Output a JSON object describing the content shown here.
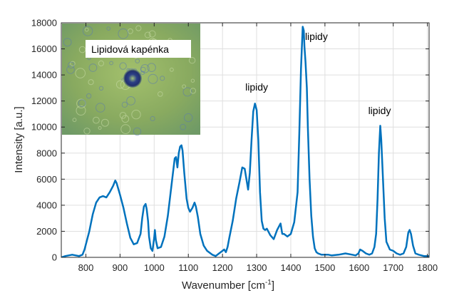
{
  "chart_data": {
    "type": "line",
    "xlabel": "Wavenumber [cm",
    "xlabel_sup": "-1",
    "xlabel_end": "]",
    "ylabel": "Intensity [a.u.]",
    "xlim": [
      728,
      1805
    ],
    "ylim": [
      0,
      18000
    ],
    "xticks": [
      800,
      900,
      1000,
      1100,
      1200,
      1300,
      1400,
      1500,
      1600,
      1700,
      1800
    ],
    "yticks": [
      0,
      2000,
      4000,
      6000,
      8000,
      10000,
      12000,
      14000,
      16000,
      18000
    ],
    "grid": true,
    "line_color": "#0072bd",
    "series": [
      {
        "x": [
          728,
          740,
          760,
          780,
          790,
          796,
          800,
          810,
          820,
          830,
          840,
          850,
          860,
          870,
          880,
          886,
          890,
          900,
          910,
          920,
          930,
          940,
          950,
          960,
          965,
          970,
          975,
          978,
          982,
          985,
          990,
          995,
          1000,
          1002,
          1005,
          1010,
          1020,
          1030,
          1040,
          1050,
          1060,
          1064,
          1068,
          1072,
          1076,
          1080,
          1083,
          1088,
          1095,
          1100,
          1105,
          1112,
          1118,
          1122,
          1128,
          1135,
          1145,
          1155,
          1170,
          1180,
          1190,
          1200,
          1205,
          1210,
          1215,
          1220,
          1230,
          1240,
          1250,
          1258,
          1265,
          1270,
          1275,
          1280,
          1285,
          1290,
          1295,
          1300,
          1305,
          1310,
          1315,
          1320,
          1325,
          1330,
          1340,
          1350,
          1360,
          1370,
          1375,
          1380,
          1390,
          1400,
          1410,
          1420,
          1425,
          1430,
          1435,
          1438,
          1440,
          1443,
          1447,
          1450,
          1455,
          1460,
          1465,
          1470,
          1475,
          1480,
          1490,
          1500,
          1510,
          1520,
          1540,
          1560,
          1580,
          1590,
          1598,
          1603,
          1610,
          1620,
          1630,
          1638,
          1645,
          1650,
          1654,
          1658,
          1662,
          1665,
          1670,
          1675,
          1680,
          1690,
          1700,
          1710,
          1720,
          1730,
          1738,
          1744,
          1748,
          1752,
          1758,
          1765,
          1775,
          1790,
          1805
        ],
        "y": [
          0,
          100,
          200,
          100,
          200,
          600,
          1000,
          2000,
          3300,
          4200,
          4600,
          4700,
          4600,
          5000,
          5500,
          5900,
          5700,
          4800,
          3800,
          2600,
          1500,
          1000,
          1100,
          1800,
          3000,
          3900,
          4100,
          3700,
          2800,
          1600,
          700,
          500,
          1500,
          2100,
          1300,
          700,
          800,
          1600,
          3200,
          5400,
          7600,
          7700,
          6900,
          8000,
          8500,
          8600,
          8200,
          6500,
          4500,
          3800,
          3500,
          3800,
          4200,
          3900,
          3100,
          1800,
          900,
          500,
          200,
          100,
          300,
          500,
          600,
          400,
          800,
          1500,
          2800,
          4500,
          5800,
          6900,
          6800,
          6000,
          5200,
          6500,
          9000,
          11200,
          11800,
          11300,
          9000,
          5000,
          2800,
          2200,
          2100,
          2200,
          1700,
          1400,
          2100,
          2600,
          1800,
          1800,
          1600,
          1800,
          2700,
          5000,
          9500,
          14500,
          17700,
          17400,
          16200,
          15000,
          13000,
          10000,
          6000,
          3200,
          1600,
          700,
          400,
          300,
          200,
          200,
          200,
          150,
          200,
          300,
          200,
          150,
          300,
          600,
          500,
          300,
          200,
          300,
          800,
          1800,
          4500,
          8000,
          10100,
          9000,
          6000,
          3000,
          1200,
          600,
          500,
          300,
          200,
          300,
          800,
          1900,
          2100,
          1800,
          900,
          300,
          200,
          100,
          100
        ]
      }
    ],
    "annotations": [
      {
        "text": "lipidy",
        "x": 1300,
        "y": 12800
      },
      {
        "text": "lipidy",
        "x": 1475,
        "y": 16700
      },
      {
        "text": "lipidy",
        "x": 1660,
        "y": 11000
      }
    ]
  },
  "inset": {
    "label": "Lipidová kapénka",
    "bg_color": "#88ab5e"
  }
}
